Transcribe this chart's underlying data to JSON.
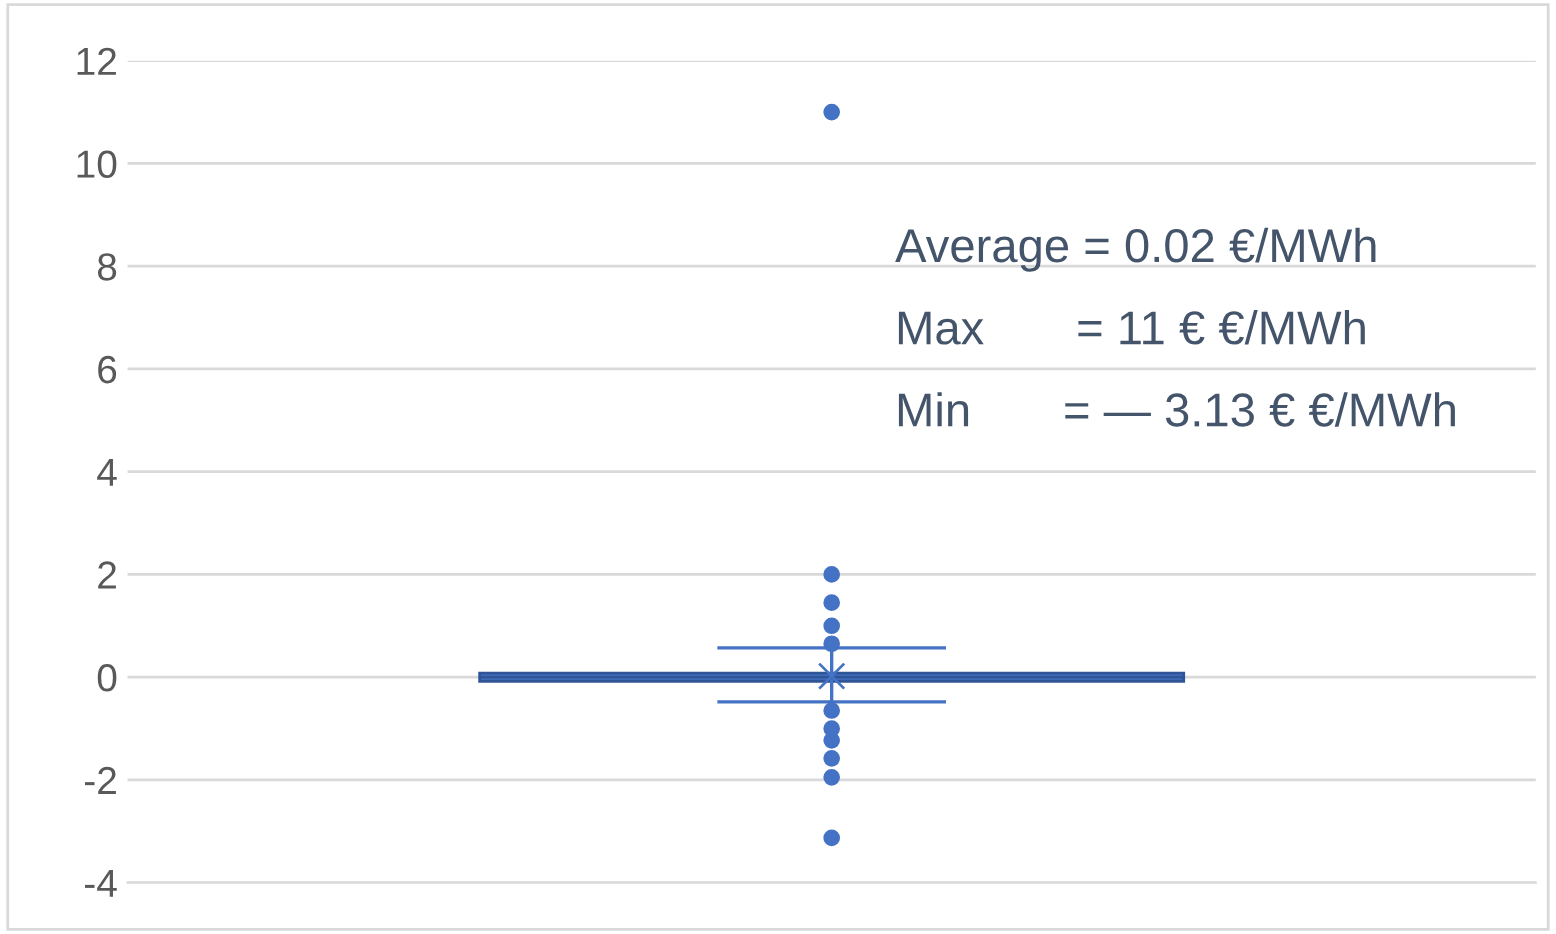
{
  "chart_data": {
    "type": "box",
    "categories": [
      null
    ],
    "color": "#4472c4",
    "boxes": [
      {
        "low": -0.48,
        "q1": -0.08,
        "median": 0.0,
        "q3": 0.08,
        "high": 0.57,
        "mean": 0.02,
        "outliers": [
          11,
          2.0,
          1.45,
          1.0,
          0.65,
          -0.65,
          -1.0,
          -1.23,
          -1.58,
          -1.95,
          -3.13
        ]
      }
    ],
    "ylim": [
      -4,
      12
    ],
    "yticks": [
      -4,
      -2,
      0,
      2,
      4,
      6,
      8,
      10,
      12
    ],
    "grid": "y",
    "annotations": [
      "Average = 0.02 €/MWh",
      "Max       = 11 € €/MWh",
      "Min       = — 3.13 € €/MWh"
    ]
  }
}
